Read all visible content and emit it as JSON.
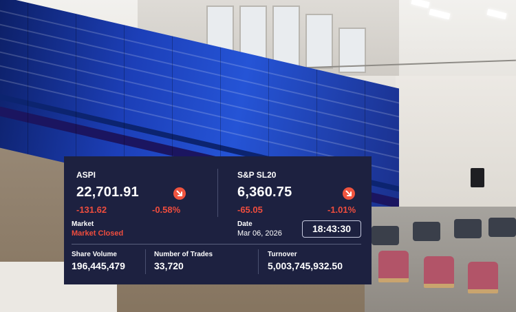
{
  "indices": [
    {
      "name": "ASPI",
      "value": "22,701.91",
      "change": "-131.62",
      "percent": "-0.58%",
      "trend_icon": "arrow-down-right-icon",
      "color": "#ef4d3e"
    },
    {
      "name": "S&P SL20",
      "value": "6,360.75",
      "change": "-65.05",
      "percent": "-1.01%",
      "trend_icon": "arrow-down-right-icon",
      "color": "#ef4d3e"
    }
  ],
  "market": {
    "label": "Market",
    "status": "Market Closed",
    "status_color": "#ef4d3e"
  },
  "date": {
    "label": "Date",
    "value": "Mar 06, 2026"
  },
  "clock": "18:43:30",
  "stats": [
    {
      "label": "Share Volume",
      "value": "196,445,479"
    },
    {
      "label": "Number of Trades",
      "value": "33,720"
    },
    {
      "label": "Turnover",
      "value": "5,003,745,932.50"
    }
  ],
  "colors": {
    "panel_bg": "#1d2140",
    "negative": "#ef4d3e",
    "text": "#ffffff"
  }
}
